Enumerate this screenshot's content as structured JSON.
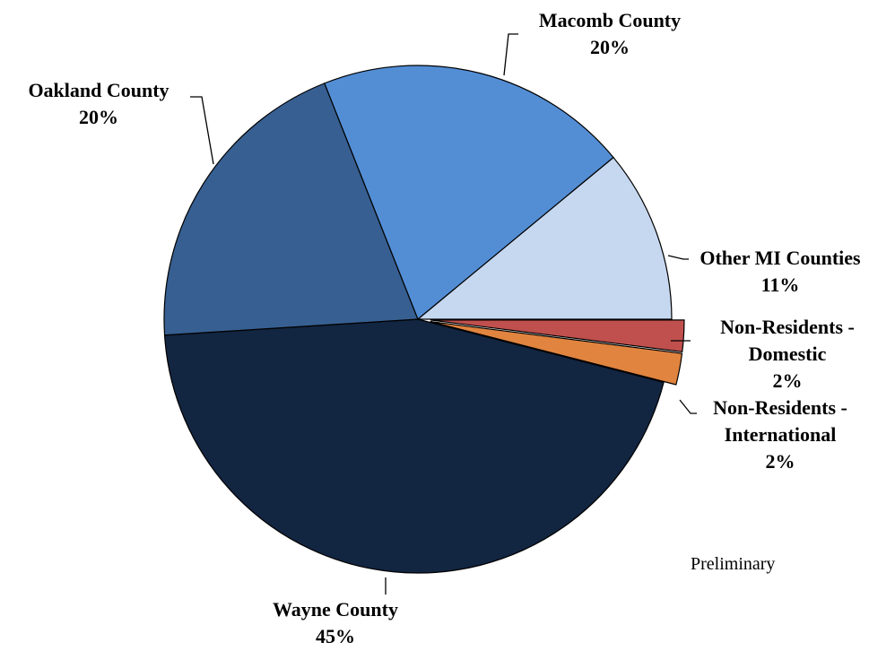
{
  "chart_data": {
    "type": "pie",
    "title": "",
    "note": "Preliminary",
    "start_angle_deg": 0,
    "direction": "clockwise",
    "slices": [
      {
        "name": "Non-Residents - Domestic",
        "lines": [
          "Non-Residents -",
          "Domestic",
          "2%"
        ],
        "label": "2%",
        "value": 2,
        "color": "#c0504d",
        "exploded": true
      },
      {
        "name": "Non-Residents - International",
        "lines": [
          "Non-Residents -",
          "International",
          "2%"
        ],
        "label": "2%",
        "value": 2,
        "color": "#e0843f",
        "exploded": true
      },
      {
        "name": "Wayne County",
        "lines": [
          "Wayne County",
          "45%"
        ],
        "label": "45%",
        "value": 45,
        "color": "#122541",
        "exploded": false
      },
      {
        "name": "Oakland County",
        "lines": [
          "Oakland County",
          "20%"
        ],
        "label": "20%",
        "value": 20,
        "color": "#375f91",
        "exploded": false
      },
      {
        "name": "Macomb County",
        "lines": [
          "Macomb County",
          "20%"
        ],
        "label": "20%",
        "value": 20,
        "color": "#538ed5",
        "exploded": false
      },
      {
        "name": "Other MI Counties",
        "lines": [
          "Other MI  Counties",
          "11%"
        ],
        "label": "11%",
        "value": 11,
        "color": "#c6d8f0",
        "exploded": false
      }
    ]
  }
}
